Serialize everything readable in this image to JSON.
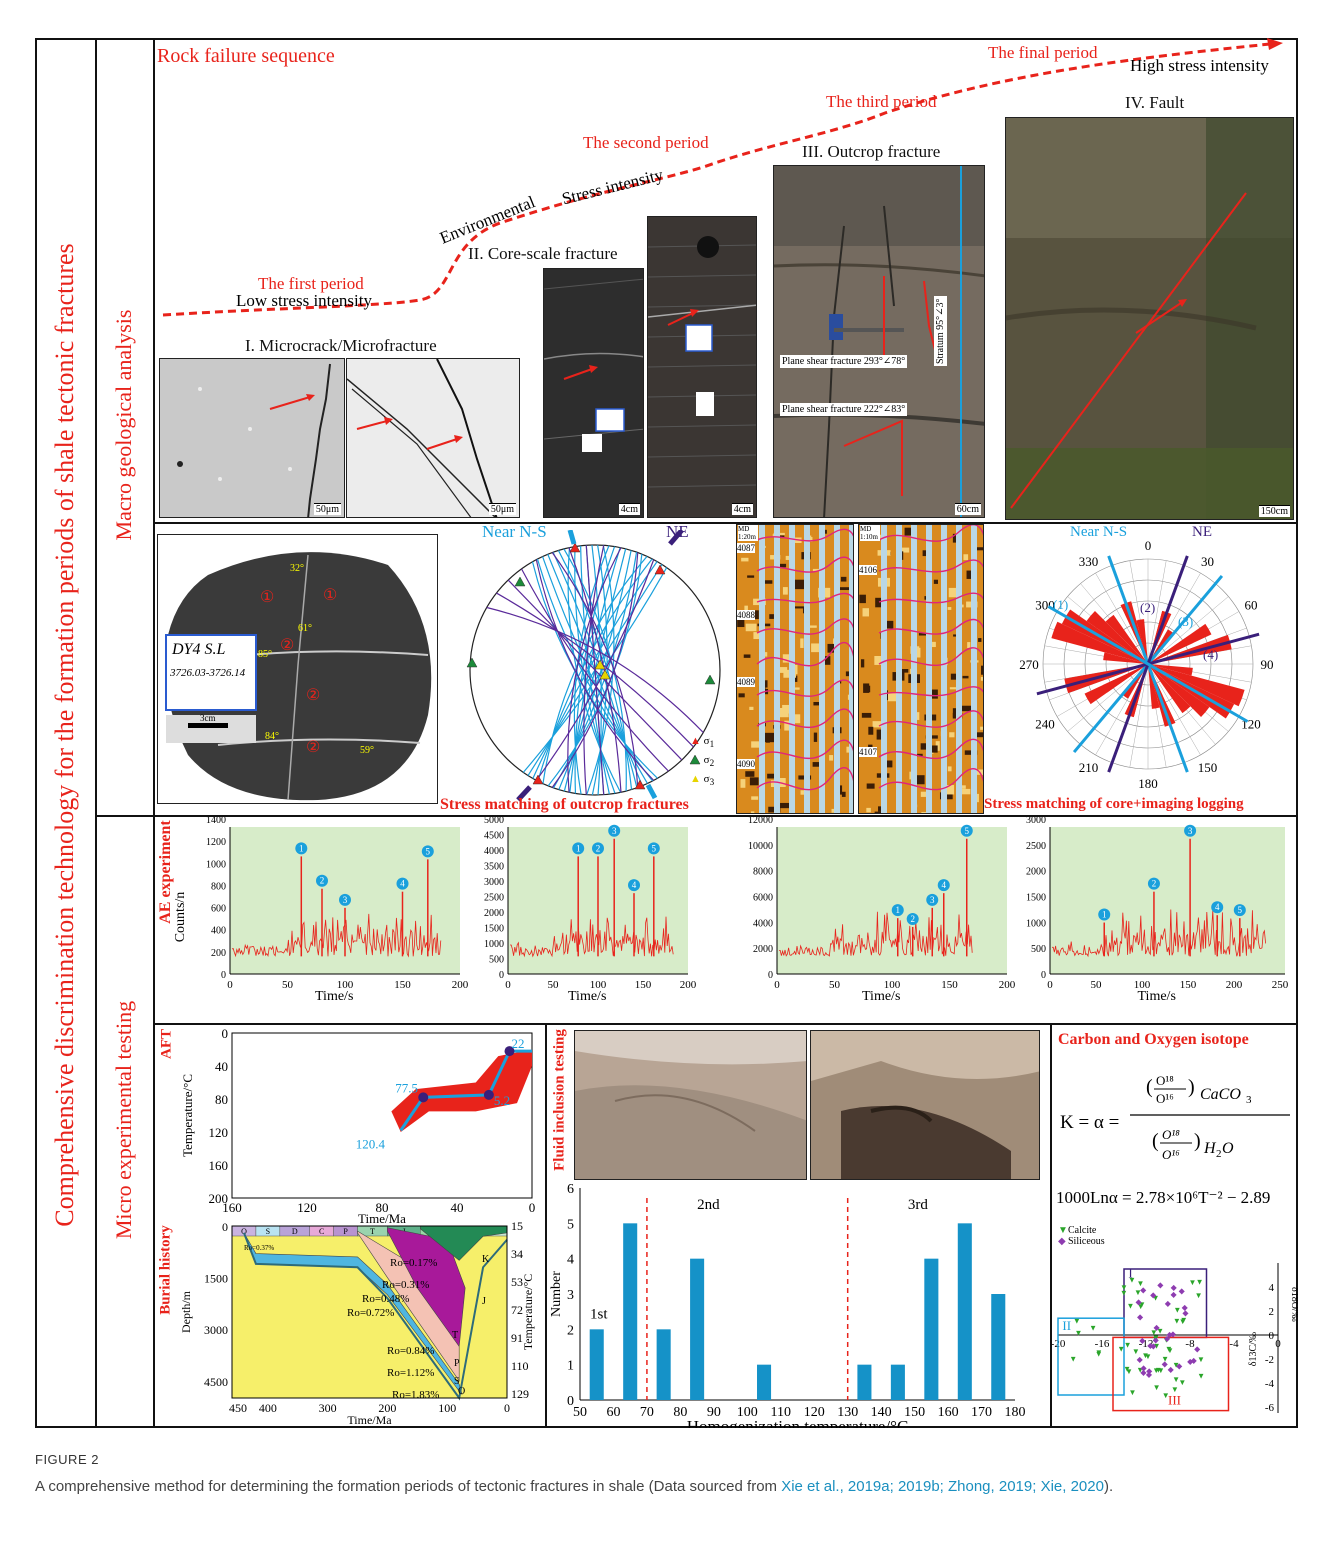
{
  "left_title": "Comprehensive discrimination technology for the formation periods of shale tectonic fractures",
  "section_macro": "Macro geological analysis",
  "section_micro": "Micro experimental testing",
  "top": {
    "title": "Rock failure sequence",
    "periods": [
      "The first period",
      "The second period",
      "The third period",
      "The final period"
    ],
    "low": "Low stress intensity",
    "high": "High stress intensity",
    "env1": "Environmental",
    "env2": "Stress intensity",
    "panels": {
      "p1": "I. Microcrack/Microfracture",
      "p2": "II. Core-scale fracture",
      "p3": "III. Outcrop fracture",
      "p4": "IV. Fault"
    },
    "scales": {
      "s1": "50μm",
      "s2": "50μm",
      "s3": "4cm",
      "s4": "4cm",
      "s5": "60cm",
      "s6": "150cm"
    },
    "annot": {
      "shear1": "Plane shear fracture 293°∠78°",
      "shear2": "Plane shear fracture 222°∠83°",
      "stratum": "Stratum 95°∠3°"
    }
  },
  "row2": {
    "core": {
      "label": "DY4 S.L",
      "depth": "3726.03-3726.14",
      "scale": "3cm",
      "angles": [
        "32°",
        "61°",
        "85°",
        "84°",
        "59°"
      ],
      "circles": [
        "①",
        "①",
        "②",
        "②",
        "②"
      ]
    },
    "stereo": {
      "title": "Stress matching of outcrop fractures",
      "near_ns": "Near N-S",
      "ne": "NE",
      "legend": [
        "σ",
        "σ",
        "σ"
      ],
      "legend_sub": [
        "1",
        "2",
        "3"
      ]
    },
    "logs": {
      "md1": "MD 1:20m",
      "md2": "MD 1:10m",
      "d1": [
        "4087",
        "4088",
        "4089",
        "4090"
      ],
      "d2": [
        "4106",
        "4107"
      ]
    },
    "rose": {
      "title": "Stress matching of core+imaging logging",
      "near_ns": "Near N-S",
      "ne": "NE",
      "angles": [
        "0",
        "30",
        "60",
        "90",
        "120",
        "150",
        "180",
        "210",
        "240",
        "270",
        "300",
        "330"
      ],
      "sets": [
        "(1)",
        "(2)",
        "(3)",
        "(4)"
      ]
    }
  },
  "ae": {
    "title": "AE experiment",
    "ylabel": "Counts/n",
    "xlabel": "Time/s",
    "charts": [
      {
        "yticks": [
          "0",
          "200",
          "400",
          "600",
          "800",
          "1000",
          "1200",
          "1400"
        ],
        "xticks": [
          "0",
          "50",
          "100",
          "150",
          "200"
        ]
      },
      {
        "yticks": [
          "0",
          "500",
          "1000",
          "1500",
          "2000",
          "2500",
          "3000",
          "3500",
          "4000",
          "4500",
          "5000"
        ],
        "xticks": [
          "0",
          "50",
          "100",
          "150",
          "200"
        ]
      },
      {
        "yticks": [
          "0",
          "2000",
          "4000",
          "6000",
          "8000",
          "10000",
          "12000"
        ],
        "xticks": [
          "0",
          "50",
          "100",
          "150",
          "200"
        ]
      },
      {
        "yticks": [
          "0",
          "500",
          "1000",
          "1500",
          "2000",
          "2500",
          "3000"
        ],
        "xticks": [
          "0",
          "50",
          "100",
          "150",
          "200",
          "250"
        ]
      }
    ]
  },
  "aft": {
    "title": "AFT",
    "ylabel": "Temperature/°C",
    "xlabel": "Time/Ma",
    "yticks": [
      "0",
      "40",
      "80",
      "120",
      "160",
      "200"
    ],
    "xticks": [
      "160",
      "120",
      "80",
      "40",
      "0"
    ],
    "labels": [
      "22",
      "77.5",
      "5.2",
      "120.4"
    ]
  },
  "burial": {
    "title": "Burial history",
    "ylabel": "Depth/m",
    "y2label": "Temperature/°C",
    "xlabel": "Time/Ma",
    "yticks": [
      "0",
      "1500",
      "3000",
      "4500"
    ],
    "y2ticks": [
      "15",
      "34",
      "53",
      "72",
      "91",
      "110",
      "129"
    ],
    "xticks": [
      "450",
      "400",
      "300",
      "200",
      "100",
      "0"
    ],
    "periods": [
      "O",
      "S",
      "D",
      "C",
      "P",
      "T",
      "J",
      "K",
      "Cz"
    ],
    "ro": [
      "Ro=0.37%",
      "Ro=0.17%",
      "Ro=0.31%",
      "Ro=0.48%",
      "Ro=0.72%",
      "Ro=0.84%",
      "Ro=1.12%",
      "Ro=1.83%"
    ],
    "layer_labels": [
      "K",
      "J",
      "T",
      "P",
      "S",
      "O"
    ]
  },
  "fluid": {
    "title": "Fluid inclusion testing",
    "ylabel": "Number",
    "xlabel": "Homogenization temperature/°C",
    "yticks": [
      "0",
      "1",
      "2",
      "3",
      "4",
      "5",
      "6"
    ],
    "xticks": [
      "50",
      "60",
      "70",
      "80",
      "90",
      "100",
      "110",
      "120",
      "130",
      "140",
      "150",
      "160",
      "170",
      "180"
    ],
    "stage_labels": [
      "1st",
      "2nd",
      "3rd"
    ]
  },
  "iso": {
    "title": "Carbon and Oxygen isotope",
    "eq_k": "K = α =",
    "eq2": "1000Lnα = 2.78×10⁶T⁻² − 2.89",
    "legend": [
      "Calcite",
      "Siliceous"
    ],
    "regions": [
      "I",
      "II",
      "III"
    ],
    "xlabel": "δ13C/‰",
    "ylabel": "δ18O/‰",
    "xticks": [
      "-20",
      "-16",
      "-12",
      "-8",
      "-4",
      "0"
    ],
    "yticks": [
      "4",
      "2",
      "0",
      "-2",
      "-4",
      "-6"
    ]
  },
  "chart_data": [
    {
      "type": "bar",
      "title": "",
      "xlabel": "Homogenization temperature/°C",
      "ylabel": "Number",
      "x": [
        55,
        65,
        75,
        85,
        105,
        135,
        145,
        155,
        165,
        175
      ],
      "values": [
        2,
        5,
        2,
        4,
        1,
        1,
        1,
        4,
        5,
        3
      ],
      "xlim": [
        50,
        180
      ],
      "ylim": [
        0,
        6
      ],
      "color": "#1592c8"
    }
  ],
  "caption": {
    "head": "FIGURE 2",
    "text": "A comprehensive method for determining the formation periods of tectonic fractures in shale (Data sourced from ",
    "refs": "Xie et al., 2019a; 2019b; Zhong, 2019; Xie, 2020",
    "end": ")."
  }
}
